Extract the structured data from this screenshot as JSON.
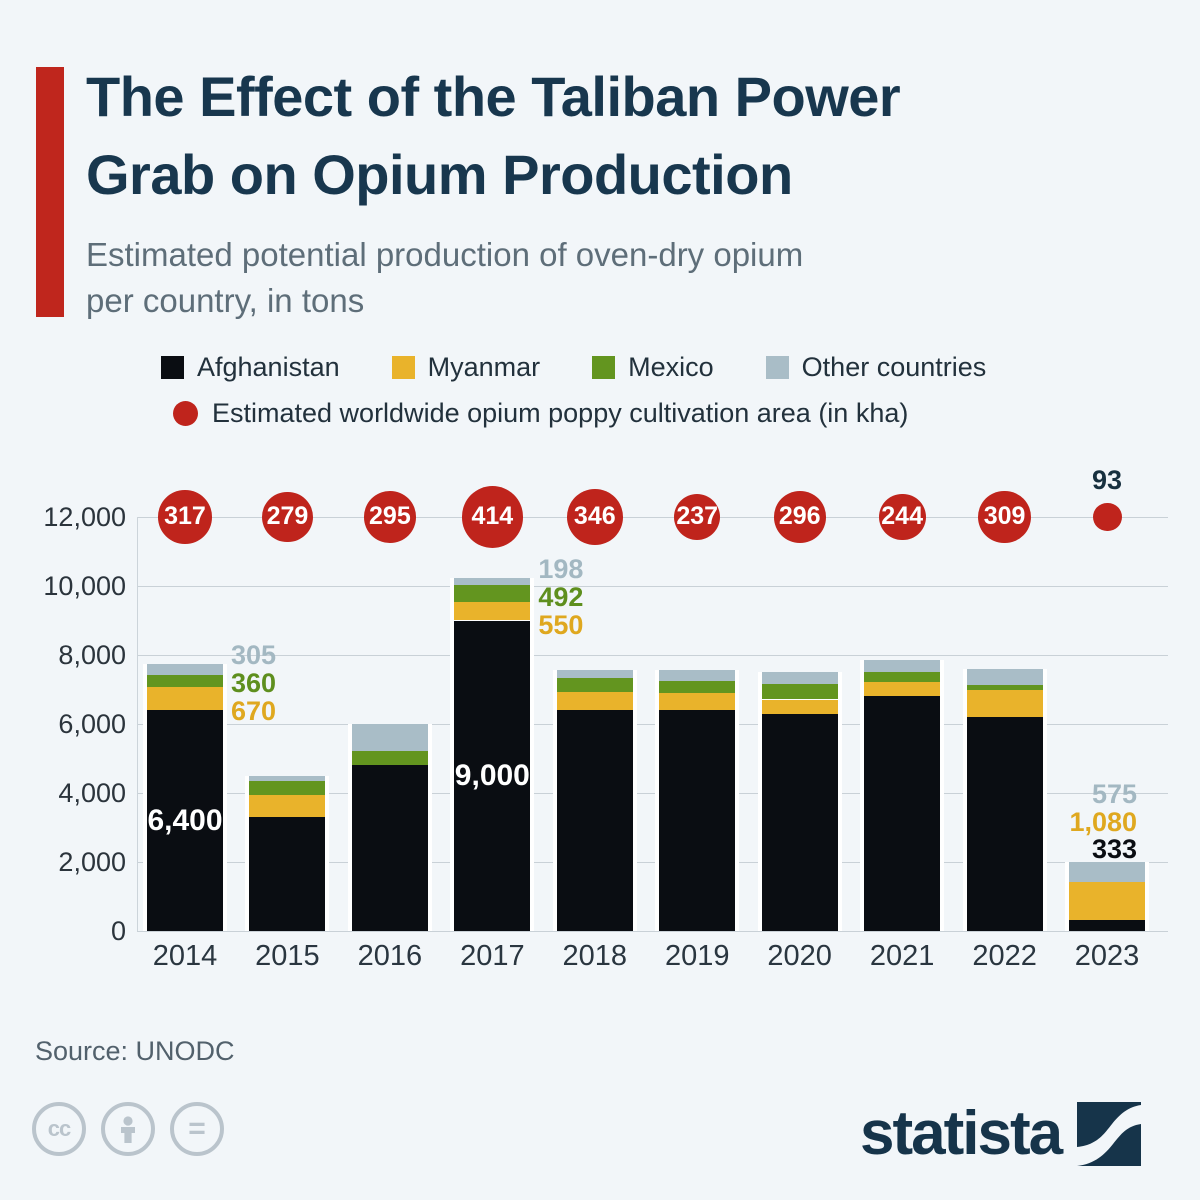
{
  "header": {
    "title_line1": "The Effect of the Taliban Power",
    "title_line2": "Grab on Opium Production",
    "subtitle_line1": "Estimated potential production of oven-dry opium",
    "subtitle_line2": "per country, in tons"
  },
  "legend": {
    "series": [
      {
        "label": "Afghanistan",
        "color": "#0a0d12"
      },
      {
        "label": "Myanmar",
        "color": "#e9b32b"
      },
      {
        "label": "Mexico",
        "color": "#63951f"
      },
      {
        "label": "Other countries",
        "color": "#a9bdc7"
      }
    ],
    "bubble_label": "Estimated worldwide opium poppy cultivation area (in kha)",
    "bubble_color": "#bf241c"
  },
  "chart_data": {
    "type": "bar",
    "stacked": true,
    "title": "The Effect of the Taliban Power Grab on Opium Production",
    "subtitle": "Estimated potential production of oven-dry opium per country, in tons",
    "categories": [
      "2014",
      "2015",
      "2016",
      "2017",
      "2018",
      "2019",
      "2020",
      "2021",
      "2022",
      "2023"
    ],
    "series": [
      {
        "name": "Afghanistan",
        "color": "#0a0d12",
        "values": [
          6400,
          3300,
          4800,
          9000,
          6400,
          6400,
          6300,
          6800,
          6200,
          333
        ]
      },
      {
        "name": "Myanmar",
        "color": "#e9b32b",
        "values": [
          670,
          650,
          0,
          550,
          520,
          510,
          410,
          420,
          790,
          1080
        ]
      },
      {
        "name": "Mexico",
        "color": "#63951f",
        "values": [
          360,
          400,
          420,
          492,
          420,
          350,
          450,
          300,
          150,
          0
        ]
      },
      {
        "name": "Other countries",
        "color": "#a9bdc7",
        "values": [
          305,
          150,
          780,
          198,
          220,
          300,
          350,
          330,
          440,
          575
        ]
      }
    ],
    "bubble_series": {
      "name": "Estimated worldwide opium poppy cultivation area (in kha)",
      "color": "#bf241c",
      "values": [
        317,
        279,
        295,
        414,
        346,
        237,
        296,
        244,
        309,
        93
      ]
    },
    "ylim": [
      0,
      12000
    ],
    "ytick_labels": [
      "0",
      "2,000",
      "4,000",
      "6,000",
      "8,000",
      "10,000",
      "12,000"
    ],
    "grid": true,
    "legend_position": "top",
    "annotations": {
      "inside": [
        {
          "category": "2014",
          "text": "6,400",
          "color": "#ffffff"
        },
        {
          "category": "2017",
          "text": "9,000",
          "color": "#ffffff"
        }
      ],
      "side": [
        {
          "category": "2014",
          "items": [
            {
              "text": "305",
              "series": "Other countries"
            },
            {
              "text": "360",
              "series": "Mexico"
            },
            {
              "text": "670",
              "series": "Myanmar"
            }
          ]
        },
        {
          "category": "2017",
          "items": [
            {
              "text": "198",
              "series": "Other countries"
            },
            {
              "text": "492",
              "series": "Mexico"
            },
            {
              "text": "550",
              "series": "Myanmar"
            }
          ]
        }
      ],
      "above": [
        {
          "category": "2023",
          "items": [
            {
              "text": "575",
              "series": "Other countries"
            },
            {
              "text": "1,080",
              "series": "Myanmar"
            },
            {
              "text": "333",
              "series": "Afghanistan"
            }
          ]
        }
      ],
      "bubble_outside": [
        {
          "category": "2023",
          "text": "93",
          "color": "#17303f"
        }
      ]
    }
  },
  "label_colors": {
    "Afghanistan": "#0a0d12",
    "Myanmar": "#dfa81f",
    "Mexico": "#5e8f1e",
    "Other countries": "#a3b8c2"
  },
  "footer": {
    "source": "Source: UNODC",
    "brand": "statista",
    "license_icons": [
      {
        "name": "cc-icon",
        "glyph": "cc"
      },
      {
        "name": "attribution-icon",
        "glyph": "person"
      },
      {
        "name": "nd-icon",
        "glyph": "="
      }
    ]
  }
}
